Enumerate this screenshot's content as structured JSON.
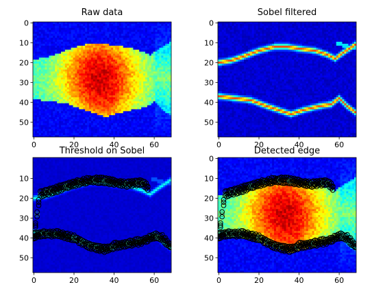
{
  "figure": {
    "panels": [
      {
        "title": "Raw data",
        "kind": "raw",
        "xticks": [
          0,
          20,
          40,
          60
        ],
        "yticks": [
          0,
          10,
          20,
          30,
          40,
          50
        ],
        "markers": false
      },
      {
        "title": "Sobel filtered",
        "kind": "sobel",
        "xticks": [
          0,
          20,
          40,
          60
        ],
        "yticks": [
          0,
          10,
          20,
          30,
          40,
          50
        ],
        "markers": false
      },
      {
        "title": "Threshold on Sobel",
        "kind": "sobel-dim",
        "xticks": [
          0,
          20,
          40,
          60
        ],
        "yticks": [
          10,
          20,
          30,
          40,
          50
        ],
        "markers": true
      },
      {
        "title": "Detected edge",
        "kind": "raw",
        "xticks": [
          0,
          20,
          40,
          60
        ],
        "yticks": [
          0,
          10,
          20,
          30,
          40,
          50
        ],
        "markers": true
      }
    ]
  },
  "chart_data": {
    "type": "heatmap",
    "grid_size": {
      "cols": 69,
      "rows": 58
    },
    "xlim": [
      -0.5,
      68.5
    ],
    "ylim": [
      57.5,
      -0.5
    ],
    "colormap": "jet",
    "edge_markers": {
      "marker": "open-circle",
      "edge_color": "#000000",
      "face_tint": "#2a8a6a",
      "upper_edge": [
        [
          0,
          39
        ],
        [
          3,
          18
        ],
        [
          6,
          17
        ],
        [
          10,
          16
        ],
        [
          16,
          14
        ],
        [
          22,
          12
        ],
        [
          28,
          11
        ],
        [
          34,
          11
        ],
        [
          40,
          12
        ],
        [
          46,
          13
        ],
        [
          52,
          12
        ],
        [
          54,
          12
        ],
        [
          57,
          15
        ]
      ],
      "lower_edge": [
        [
          0,
          39
        ],
        [
          3,
          38
        ],
        [
          8,
          38
        ],
        [
          12,
          38
        ],
        [
          16,
          39
        ],
        [
          20,
          40
        ],
        [
          24,
          42
        ],
        [
          28,
          44
        ],
        [
          32,
          45
        ],
        [
          36,
          46
        ],
        [
          40,
          44
        ],
        [
          46,
          43
        ],
        [
          52,
          42
        ],
        [
          56,
          41
        ],
        [
          60,
          39
        ],
        [
          64,
          40
        ],
        [
          68,
          44
        ]
      ]
    }
  }
}
